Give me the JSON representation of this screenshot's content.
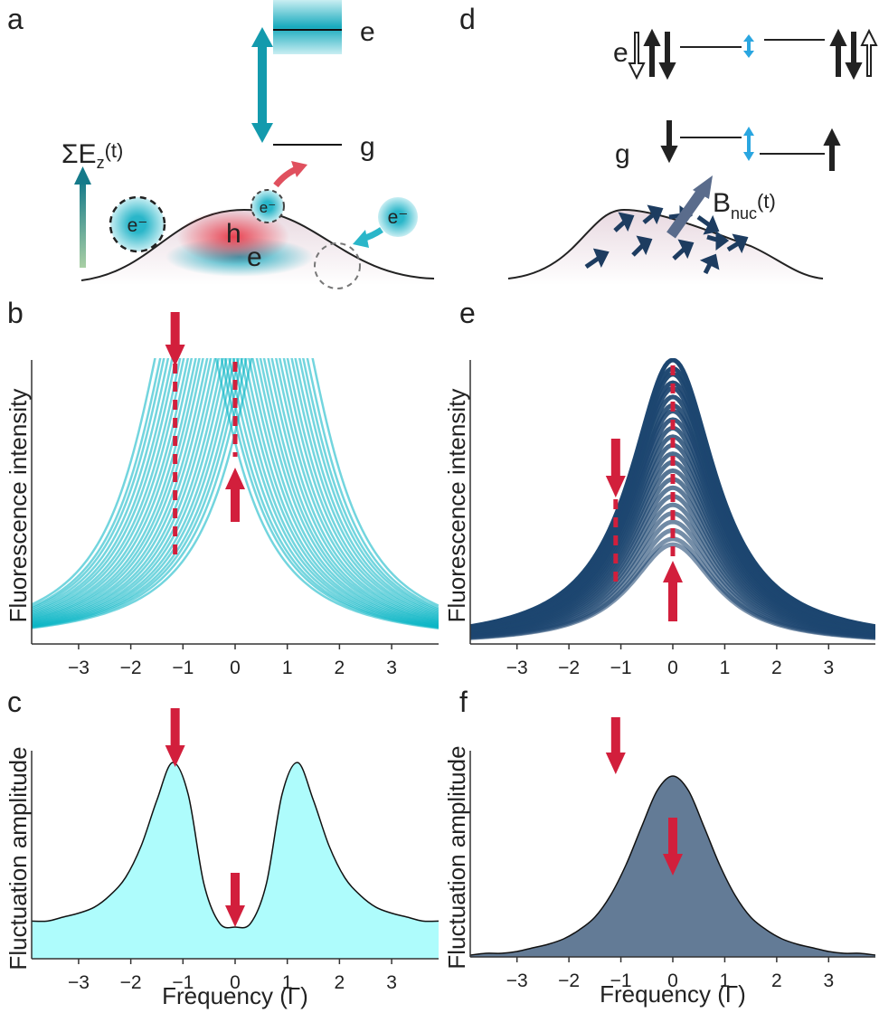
{
  "panel_a": {
    "letter": "a",
    "level_e": "e",
    "level_g": "g",
    "field": {
      "main": "ΣE",
      "sub": "z",
      "tail": "(t)"
    },
    "charges": [
      "e⁻",
      "e⁻",
      "e⁻"
    ],
    "hole": "h",
    "electron": "e"
  },
  "panel_d": {
    "letter": "d",
    "level_e": "e",
    "level_g": "g",
    "field": {
      "main": "B",
      "sub": "nuc",
      "tail": "(t)"
    }
  },
  "chart_data": [
    {
      "type": "lorentzian-ensemble",
      "label": "b",
      "ylabel": "Fluorescence intensity",
      "color": "#00b2c2",
      "centers": [
        -0.95,
        -0.85,
        -0.78,
        -0.7,
        -0.62,
        -0.55,
        -0.47,
        -0.4,
        -0.32,
        -0.25,
        -0.17,
        -0.1,
        -0.03,
        0.05,
        0.12,
        0.2,
        0.27,
        0.35,
        0.42,
        0.5,
        0.57,
        0.65,
        0.72,
        0.8,
        0.9
      ],
      "amplitude": 1.35,
      "xlim": [
        -3.9,
        3.9
      ],
      "ylim": [
        0,
        1
      ],
      "xticks": [
        {
          "value": -3,
          "label": "−3"
        },
        {
          "value": -2,
          "label": "−2"
        },
        {
          "value": -1,
          "label": "−1"
        },
        0,
        1,
        2,
        3
      ],
      "markers_x": [
        -1.15,
        0
      ]
    },
    {
      "type": "area",
      "label": "c",
      "ylabel": "Fluctuation amplitude",
      "xlabel": "Frequency (Γ)",
      "color": "#aefcfc",
      "x": [
        -3.9,
        -3.6,
        -3.3,
        -3.0,
        -2.7,
        -2.4,
        -2.1,
        -1.8,
        -1.5,
        -1.2,
        -0.9,
        -0.6,
        -0.3,
        0,
        0.3,
        0.6,
        0.9,
        1.2,
        1.5,
        1.8,
        2.1,
        2.4,
        2.7,
        3.0,
        3.3,
        3.6,
        3.9
      ],
      "values": [
        0.19,
        0.19,
        0.21,
        0.23,
        0.26,
        0.32,
        0.41,
        0.57,
        0.8,
        0.99,
        0.83,
        0.38,
        0.18,
        0.16,
        0.18,
        0.38,
        0.83,
        0.99,
        0.8,
        0.57,
        0.41,
        0.32,
        0.26,
        0.23,
        0.21,
        0.19,
        0.19
      ],
      "xlim": [
        -3.9,
        3.9
      ],
      "ylim": [
        0,
        1.05
      ],
      "xticks": [
        {
          "value": -3,
          "label": "−3"
        },
        {
          "value": -2,
          "label": "−2"
        },
        {
          "value": -1,
          "label": "−1"
        },
        0,
        1,
        2,
        3
      ],
      "markers_x": [
        -1.15,
        0
      ]
    },
    {
      "type": "lorentzian-ensemble",
      "label": "e",
      "ylabel": "Fluorescence intensity",
      "color": "#1d4670",
      "center": 0,
      "amplitudes": [
        1,
        0.97,
        0.95,
        0.92,
        0.9,
        0.87,
        0.84,
        0.82,
        0.79,
        0.76,
        0.73,
        0.7,
        0.67,
        0.64,
        0.61,
        0.58,
        0.55,
        0.52,
        0.49,
        0.46,
        0.43,
        0.4,
        0.37,
        0.35
      ],
      "xlim": [
        -3.9,
        3.9
      ],
      "ylim": [
        0,
        1
      ],
      "xticks": [
        {
          "value": -3,
          "label": "−3"
        },
        {
          "value": -2,
          "label": "−2"
        },
        {
          "value": -1,
          "label": "−1"
        },
        0,
        1,
        2,
        3
      ],
      "markers_x": [
        -1.1,
        0
      ]
    },
    {
      "type": "area",
      "label": "f",
      "ylabel": "Fluctuation amplitude",
      "xlabel": "Frequency (Γ)",
      "color": "#637b96",
      "x": [
        -3.9,
        -3.6,
        -3.3,
        -3.0,
        -2.7,
        -2.4,
        -2.1,
        -1.8,
        -1.5,
        -1.2,
        -0.9,
        -0.6,
        -0.3,
        0,
        0.3,
        0.6,
        0.9,
        1.2,
        1.5,
        1.8,
        2.1,
        2.4,
        2.7,
        3.0,
        3.3,
        3.6,
        3.9
      ],
      "values": [
        0.01,
        0.02,
        0.02,
        0.03,
        0.05,
        0.07,
        0.1,
        0.15,
        0.22,
        0.34,
        0.51,
        0.72,
        0.92,
        1,
        0.92,
        0.72,
        0.51,
        0.34,
        0.22,
        0.15,
        0.1,
        0.07,
        0.05,
        0.03,
        0.02,
        0.02,
        0.01
      ],
      "xlim": [
        -3.9,
        3.9
      ],
      "ylim": [
        0,
        1.14
      ],
      "xticks": [
        {
          "value": -3,
          "label": "−3"
        },
        {
          "value": -2,
          "label": "−2"
        },
        {
          "value": -1,
          "label": "−1"
        },
        0,
        1,
        2,
        3
      ],
      "markers_x": [
        -1.1,
        0
      ]
    }
  ]
}
